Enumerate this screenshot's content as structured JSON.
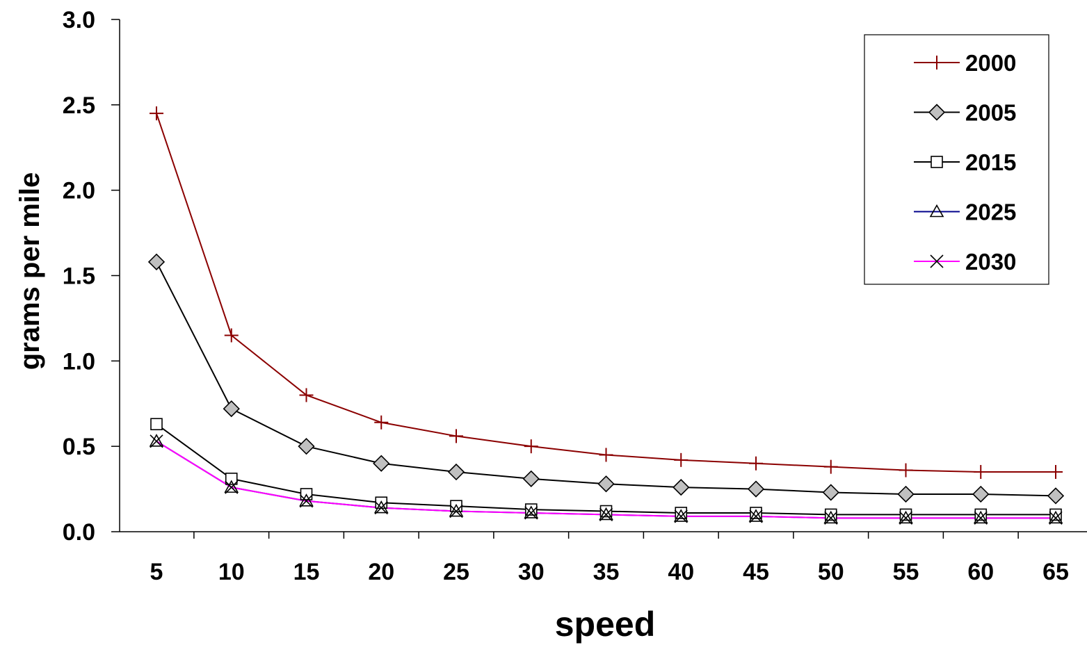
{
  "chart_data": {
    "type": "line",
    "title": "",
    "xlabel": "speed",
    "ylabel": "grams per mile",
    "ylim": [
      0,
      3
    ],
    "yticks": [
      "0.0",
      "0.5",
      "1.0",
      "1.5",
      "2.0",
      "2.5",
      "3.0"
    ],
    "categories": [
      "5",
      "10",
      "15",
      "20",
      "25",
      "30",
      "35",
      "40",
      "45",
      "50",
      "55",
      "60",
      "65"
    ],
    "grid": false,
    "legend_position": "top-right",
    "series": [
      {
        "name": "2000",
        "color": "#8b0000",
        "marker": "plus",
        "values": [
          2.45,
          1.15,
          0.8,
          0.64,
          0.56,
          0.5,
          0.45,
          0.42,
          0.4,
          0.38,
          0.36,
          0.35,
          0.35
        ]
      },
      {
        "name": "2005",
        "color": "#000000",
        "marker": "diamond",
        "marker_fill": "#c0c0c0",
        "values": [
          1.58,
          0.72,
          0.5,
          0.4,
          0.35,
          0.31,
          0.28,
          0.26,
          0.25,
          0.23,
          0.22,
          0.22,
          0.21
        ]
      },
      {
        "name": "2015",
        "color": "#000000",
        "marker": "square",
        "values": [
          0.63,
          0.31,
          0.22,
          0.17,
          0.15,
          0.13,
          0.12,
          0.11,
          0.11,
          0.1,
          0.1,
          0.1,
          0.1
        ]
      },
      {
        "name": "2025",
        "color": "#00008b",
        "marker": "triangle",
        "values": [
          0.53,
          0.26,
          0.18,
          0.14,
          0.12,
          0.11,
          0.1,
          0.09,
          0.09,
          0.08,
          0.08,
          0.08,
          0.08
        ]
      },
      {
        "name": "2030",
        "color": "#ff00ff",
        "marker": "x",
        "values": [
          0.53,
          0.26,
          0.18,
          0.14,
          0.12,
          0.11,
          0.1,
          0.09,
          0.09,
          0.08,
          0.08,
          0.08,
          0.08
        ]
      }
    ]
  }
}
